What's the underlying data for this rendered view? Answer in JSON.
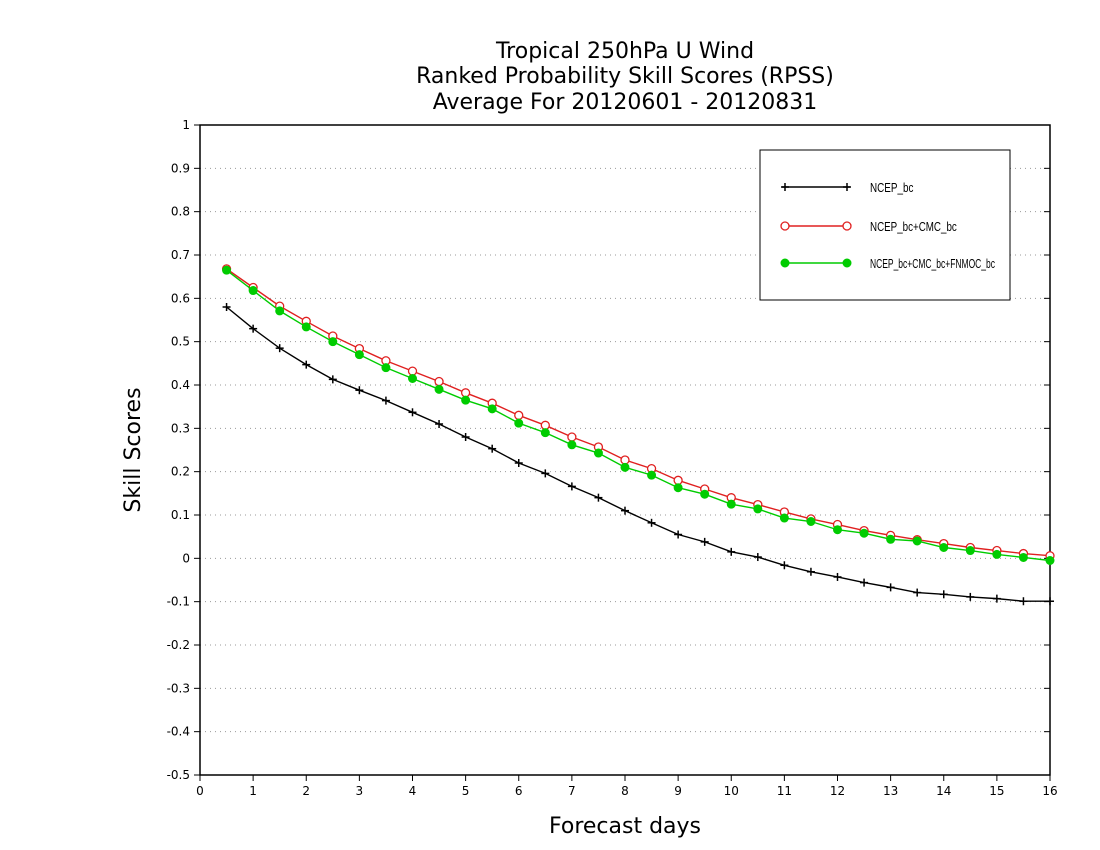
{
  "chart_data": {
    "type": "line",
    "title": [
      "Tropical 250hPa U Wind",
      "Ranked Probability Skill Scores (RPSS)",
      "Average For 20120601 - 20120831"
    ],
    "xlabel": "Forecast days",
    "ylabel": "Skill Scores",
    "xlim": [
      0,
      16
    ],
    "ylim": [
      -0.5,
      1
    ],
    "xticks": [
      "0",
      "1",
      "2",
      "3",
      "4",
      "5",
      "6",
      "7",
      "8",
      "9",
      "10",
      "11",
      "12",
      "13",
      "14",
      "15",
      "16"
    ],
    "yticks": [
      "-0.5",
      "-0.4",
      "-0.3",
      "-0.2",
      "-0.1",
      "0",
      "0.1",
      "0.2",
      "0.3",
      "0.4",
      "0.5",
      "0.6",
      "0.7",
      "0.8",
      "0.9",
      "1"
    ],
    "grid": true,
    "legend_position": "top-right",
    "x": [
      0.5,
      1,
      1.5,
      2,
      2.5,
      3,
      3.5,
      4,
      4.5,
      5,
      5.5,
      6,
      6.5,
      7,
      7.5,
      8,
      8.5,
      9,
      9.5,
      10,
      10.5,
      11,
      11.5,
      12,
      12.5,
      13,
      13.5,
      14,
      14.5,
      15,
      15.5,
      16
    ],
    "series": [
      {
        "name": "NCEP_bc",
        "color": "#000000",
        "marker": "plus",
        "values": [
          0.58,
          0.53,
          0.485,
          0.447,
          0.413,
          0.388,
          0.364,
          0.337,
          0.31,
          0.28,
          0.253,
          0.22,
          0.196,
          0.166,
          0.14,
          0.11,
          0.082,
          0.055,
          0.038,
          0.015,
          0.003,
          -0.016,
          -0.031,
          -0.043,
          -0.056,
          -0.067,
          -0.079,
          -0.083,
          -0.089,
          -0.093,
          -0.099,
          -0.099
        ]
      },
      {
        "name": "NCEP_bc+CMC_bc",
        "color": "#e02020",
        "marker": "open-circle",
        "values": [
          0.668,
          0.625,
          0.582,
          0.547,
          0.513,
          0.484,
          0.456,
          0.432,
          0.408,
          0.382,
          0.358,
          0.33,
          0.307,
          0.28,
          0.257,
          0.227,
          0.207,
          0.18,
          0.16,
          0.14,
          0.124,
          0.107,
          0.091,
          0.078,
          0.064,
          0.053,
          0.043,
          0.034,
          0.025,
          0.018,
          0.011,
          0.006
        ]
      },
      {
        "name": "NCEP_bc+CMC_bc+FNMOC_bc",
        "color": "#00cc00",
        "marker": "filled-circle",
        "values": [
          0.665,
          0.618,
          0.571,
          0.534,
          0.5,
          0.47,
          0.44,
          0.415,
          0.39,
          0.365,
          0.345,
          0.312,
          0.29,
          0.262,
          0.243,
          0.21,
          0.192,
          0.163,
          0.148,
          0.125,
          0.114,
          0.093,
          0.085,
          0.066,
          0.058,
          0.044,
          0.04,
          0.025,
          0.018,
          0.009,
          0.002,
          -0.005
        ]
      }
    ]
  }
}
